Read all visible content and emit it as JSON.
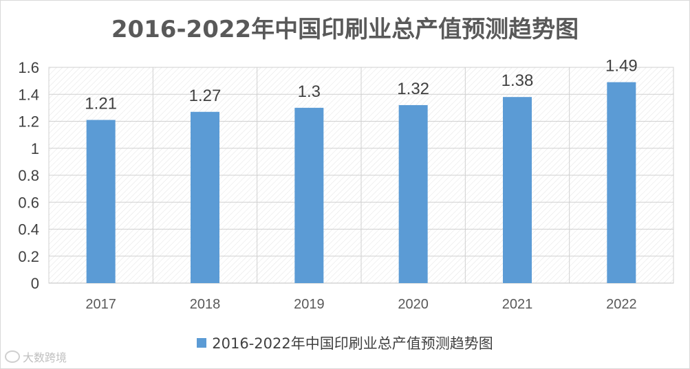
{
  "chart_data": {
    "type": "bar",
    "title": "2016-2022年中国印刷业总产值预测趋势图",
    "categories": [
      "2017",
      "2018",
      "2019",
      "2020",
      "2021",
      "2022"
    ],
    "series": [
      {
        "name": "2016-2022年中国印刷业总产值预测趋势图",
        "values": [
          1.21,
          1.27,
          1.3,
          1.32,
          1.38,
          1.49
        ]
      }
    ],
    "data_labels": [
      "1.21",
      "1.27",
      "1.3",
      "1.32",
      "1.38",
      "1.49"
    ],
    "y_ticks": [
      "0",
      "0.2",
      "0.4",
      "0.6",
      "0.8",
      "1",
      "1.2",
      "1.4",
      "1.6"
    ],
    "ylim": [
      0,
      1.6
    ],
    "grid": true,
    "legend_position": "bottom",
    "bar_color": "#5b9bd5"
  },
  "watermark": {
    "text": "大数跨境",
    "icon": "brand-logo-icon"
  }
}
